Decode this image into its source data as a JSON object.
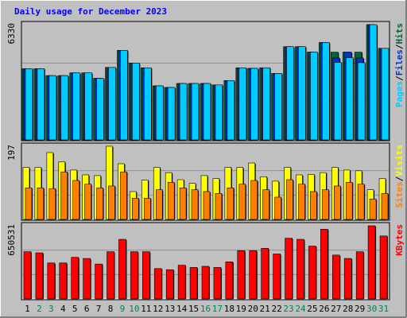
{
  "chart_data": {
    "type": "bar",
    "title": "Daily usage for December 2023",
    "categories": [
      "1",
      "2",
      "3",
      "4",
      "5",
      "6",
      "7",
      "8",
      "9",
      "10",
      "11",
      "12",
      "13",
      "14",
      "15",
      "16",
      "17",
      "18",
      "19",
      "20",
      "21",
      "22",
      "23",
      "24",
      "25",
      "26",
      "27",
      "28",
      "29",
      "30",
      "31"
    ],
    "weekend_days": [
      "2",
      "3",
      "9",
      "10",
      "16",
      "17",
      "23",
      "24",
      "30",
      "31"
    ],
    "panels": [
      {
        "id": "pages_files_hits",
        "ylim": [
          0,
          6330
        ],
        "max_label": "6330",
        "right_label": [
          "Pages",
          "/",
          "Files",
          "/",
          "Hits"
        ],
        "series": [
          {
            "name": "Hits",
            "color": "#006633",
            "values": [
              3910,
              3910,
              3530,
              3530,
              3680,
              3680,
              3380,
              3980,
              4920,
              4220,
              3960,
              2970,
              2880,
              3100,
              3100,
              3100,
              3020,
              3260,
              3960,
              3930,
              3960,
              3650,
              5120,
              5120,
              4820,
              5350,
              4820,
              4820,
              4820,
              6330,
              5030
            ]
          },
          {
            "name": "Files",
            "color": "#0033cc",
            "values": [
              3910,
              3910,
              3530,
              3530,
              3680,
              3680,
              3380,
              3980,
              4920,
              4220,
              3960,
              2970,
              2880,
              3100,
              3100,
              3100,
              3020,
              3260,
              3960,
              3930,
              3960,
              3650,
              5120,
              5120,
              4820,
              5350,
              4500,
              4820,
              4500,
              6330,
              5030
            ]
          },
          {
            "name": "Pages",
            "color": "#00ccff",
            "values": [
              3910,
              3910,
              3530,
              3530,
              3680,
              3680,
              3380,
              3980,
              4920,
              4220,
              3960,
              2970,
              2880,
              3100,
              3100,
              3100,
              3020,
              3260,
              3960,
              3930,
              3960,
              3650,
              5120,
              5120,
              4820,
              5350,
              4260,
              4520,
              4240,
              6330,
              5030
            ]
          }
        ]
      },
      {
        "id": "visits_sites",
        "ylim": [
          0,
          197
        ],
        "max_label": "197",
        "right_label": [
          "Sites",
          "/",
          "Visits"
        ],
        "series": [
          {
            "name": "Visits",
            "color": "#ffff00",
            "values": [
              140,
              140,
              180,
              155,
              133,
              120,
              118,
              197,
              150,
              75,
              106,
              140,
              126,
              107,
              97,
              118,
              110,
              140,
              140,
              152,
              115,
              103,
              140,
              120,
              121,
              126,
              140,
              133,
              131,
              80,
              110
            ]
          },
          {
            "name": "Sites",
            "color": "#ff8000",
            "values": [
              85,
              85,
              83,
              128,
              105,
              95,
              85,
              90,
              128,
              57,
              57,
              80,
              100,
              85,
              80,
              75,
              70,
              85,
              95,
              105,
              80,
              60,
              107,
              95,
              75,
              80,
              90,
              100,
              95,
              55,
              70
            ]
          }
        ]
      },
      {
        "id": "kbytes",
        "ylim": [
          0,
          650531
        ],
        "max_label": "650531",
        "right_label": [
          "KBytes"
        ],
        "series": [
          {
            "name": "KBytes",
            "color": "#ff0000",
            "values": [
              420000,
              410000,
              320000,
              320000,
              370000,
              360000,
              310000,
              420000,
              530000,
              420000,
              420000,
              270000,
              260000,
              300000,
              280000,
              290000,
              280000,
              330000,
              430000,
              430000,
              450000,
              400000,
              540000,
              530000,
              470000,
              620000,
              390000,
              360000,
              420000,
              650531,
              560000
            ]
          }
        ]
      }
    ]
  },
  "colors": {
    "background": "#c0c0c0",
    "plot_background": "#c0c0c0",
    "title": "#0000ff",
    "grid": "#909090",
    "weekday_label": "#000000",
    "weekend_label": "#00805c"
  }
}
